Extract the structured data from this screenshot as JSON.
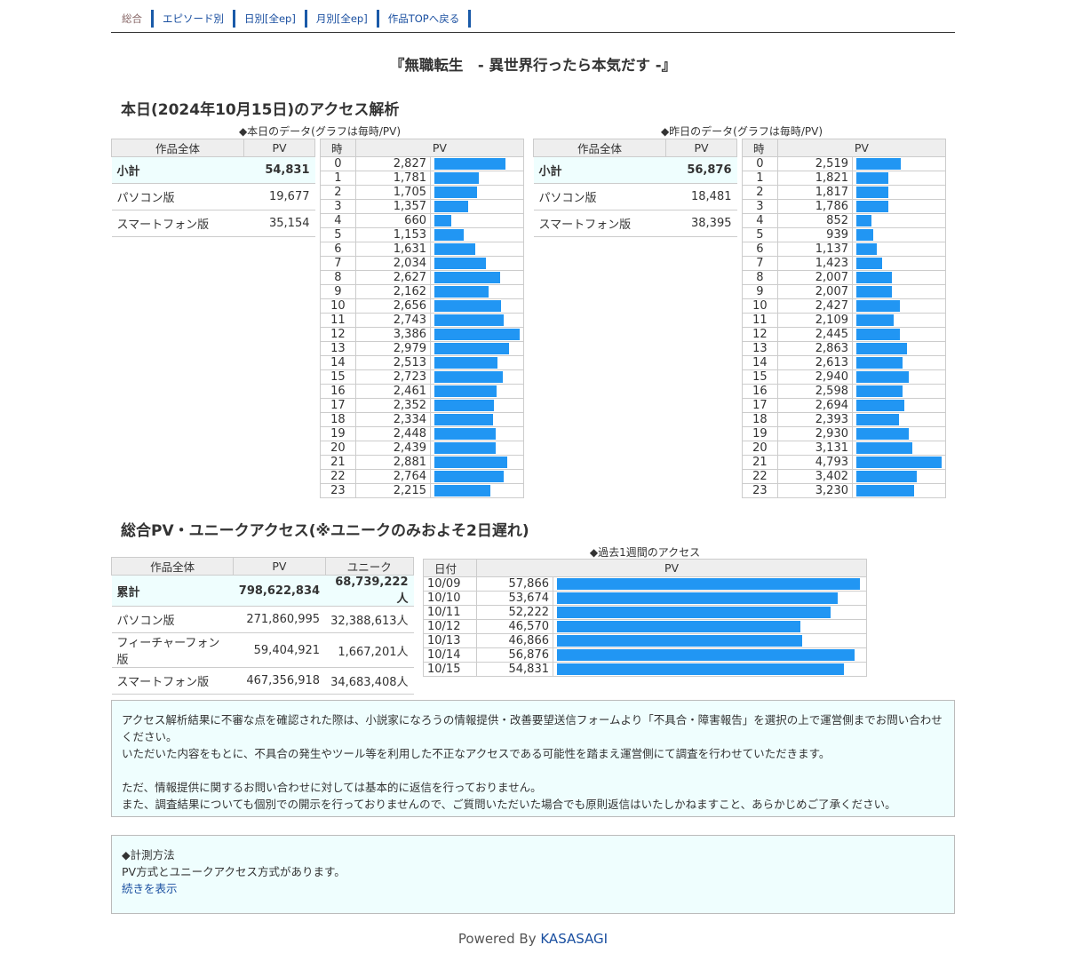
{
  "nav": [
    "総合",
    "エピソード別",
    "日別[全ep]",
    "月別[全ep]",
    "作品TOPへ戻る"
  ],
  "title": "『無職転生　- 異世界行ったら本気だす -』",
  "today": {
    "heading": "本日(2024年10月15日)のアクセス解析",
    "caption": "◆本日のデータ(グラフは毎時/PV)",
    "summary_headers": [
      "作品全体",
      "PV"
    ],
    "summary": [
      [
        "小計",
        "54,831"
      ],
      [
        "パソコン版",
        "19,677"
      ],
      [
        "スマートフォン版",
        "35,154"
      ]
    ],
    "hourly_headers": [
      "時",
      "PV"
    ],
    "hourly": [
      2827,
      1781,
      1705,
      1357,
      660,
      1153,
      1631,
      2034,
      2627,
      2162,
      2656,
      2743,
      3386,
      2979,
      2513,
      2723,
      2461,
      2352,
      2334,
      2448,
      2439,
      2881,
      2764,
      2215
    ]
  },
  "yesterday": {
    "caption": "◆昨日のデータ(グラフは毎時/PV)",
    "summary_headers": [
      "作品全体",
      "PV"
    ],
    "summary": [
      [
        "小計",
        "56,876"
      ],
      [
        "パソコン版",
        "18,481"
      ],
      [
        "スマートフォン版",
        "38,395"
      ]
    ],
    "hourly_headers": [
      "時",
      "PV"
    ],
    "hourly": [
      2519,
      1821,
      1817,
      1786,
      852,
      939,
      1137,
      1423,
      2007,
      2007,
      2427,
      2109,
      2445,
      2863,
      2613,
      2940,
      2598,
      2694,
      2393,
      2930,
      3131,
      4793,
      3402,
      3230
    ]
  },
  "totals": {
    "heading": "総合PV・ユニークアクセス(※ユニークのみおよそ2日遅れ)",
    "headers": [
      "作品全体",
      "PV",
      "ユニーク"
    ],
    "rows": [
      [
        "累計",
        "798,622,834",
        "68,739,222人"
      ],
      [
        "パソコン版",
        "271,860,995",
        "32,388,613人"
      ],
      [
        "フィーチャーフォン版",
        "59,404,921",
        "1,667,201人"
      ],
      [
        "スマートフォン版",
        "467,356,918",
        "34,683,408人"
      ]
    ]
  },
  "weekly": {
    "caption": "◆過去1週間のアクセス",
    "headers": [
      "日付",
      "PV"
    ],
    "rows": [
      [
        "10/09",
        57866
      ],
      [
        "10/10",
        53674
      ],
      [
        "10/11",
        52222
      ],
      [
        "10/12",
        46570
      ],
      [
        "10/13",
        46866
      ],
      [
        "10/14",
        56876
      ],
      [
        "10/15",
        54831
      ]
    ]
  },
  "notice": [
    "アクセス解析結果に不審な点を確認された際は、小説家になろうの情報提供・改善要望送信フォームより「不具合・障害報告」を選択の上で運営側までお問い合わせください。",
    "いただいた内容をもとに、不具合の発生やツール等を利用した不正なアクセスである可能性を踏まえ運営側にて調査を行わせていただきます。",
    "ただ、情報提供に関するお問い合わせに対しては基本的に返信を行っておりません。",
    "また、調査結果についても個別での開示を行っておりませんので、ご質問いただいた場合でも原則返信はいたしかねますこと、あらかじめご了承ください。"
  ],
  "method": {
    "title": "◆計測方法",
    "text": "PV方式とユニークアクセス方式があります。",
    "more": "続きを表示"
  },
  "footer": {
    "prefix": "Powered By ",
    "brand": "KASASAGI"
  },
  "colors": {
    "bar": "#2196f3",
    "highlight": "#effefe",
    "link": "#1a4fa0"
  }
}
